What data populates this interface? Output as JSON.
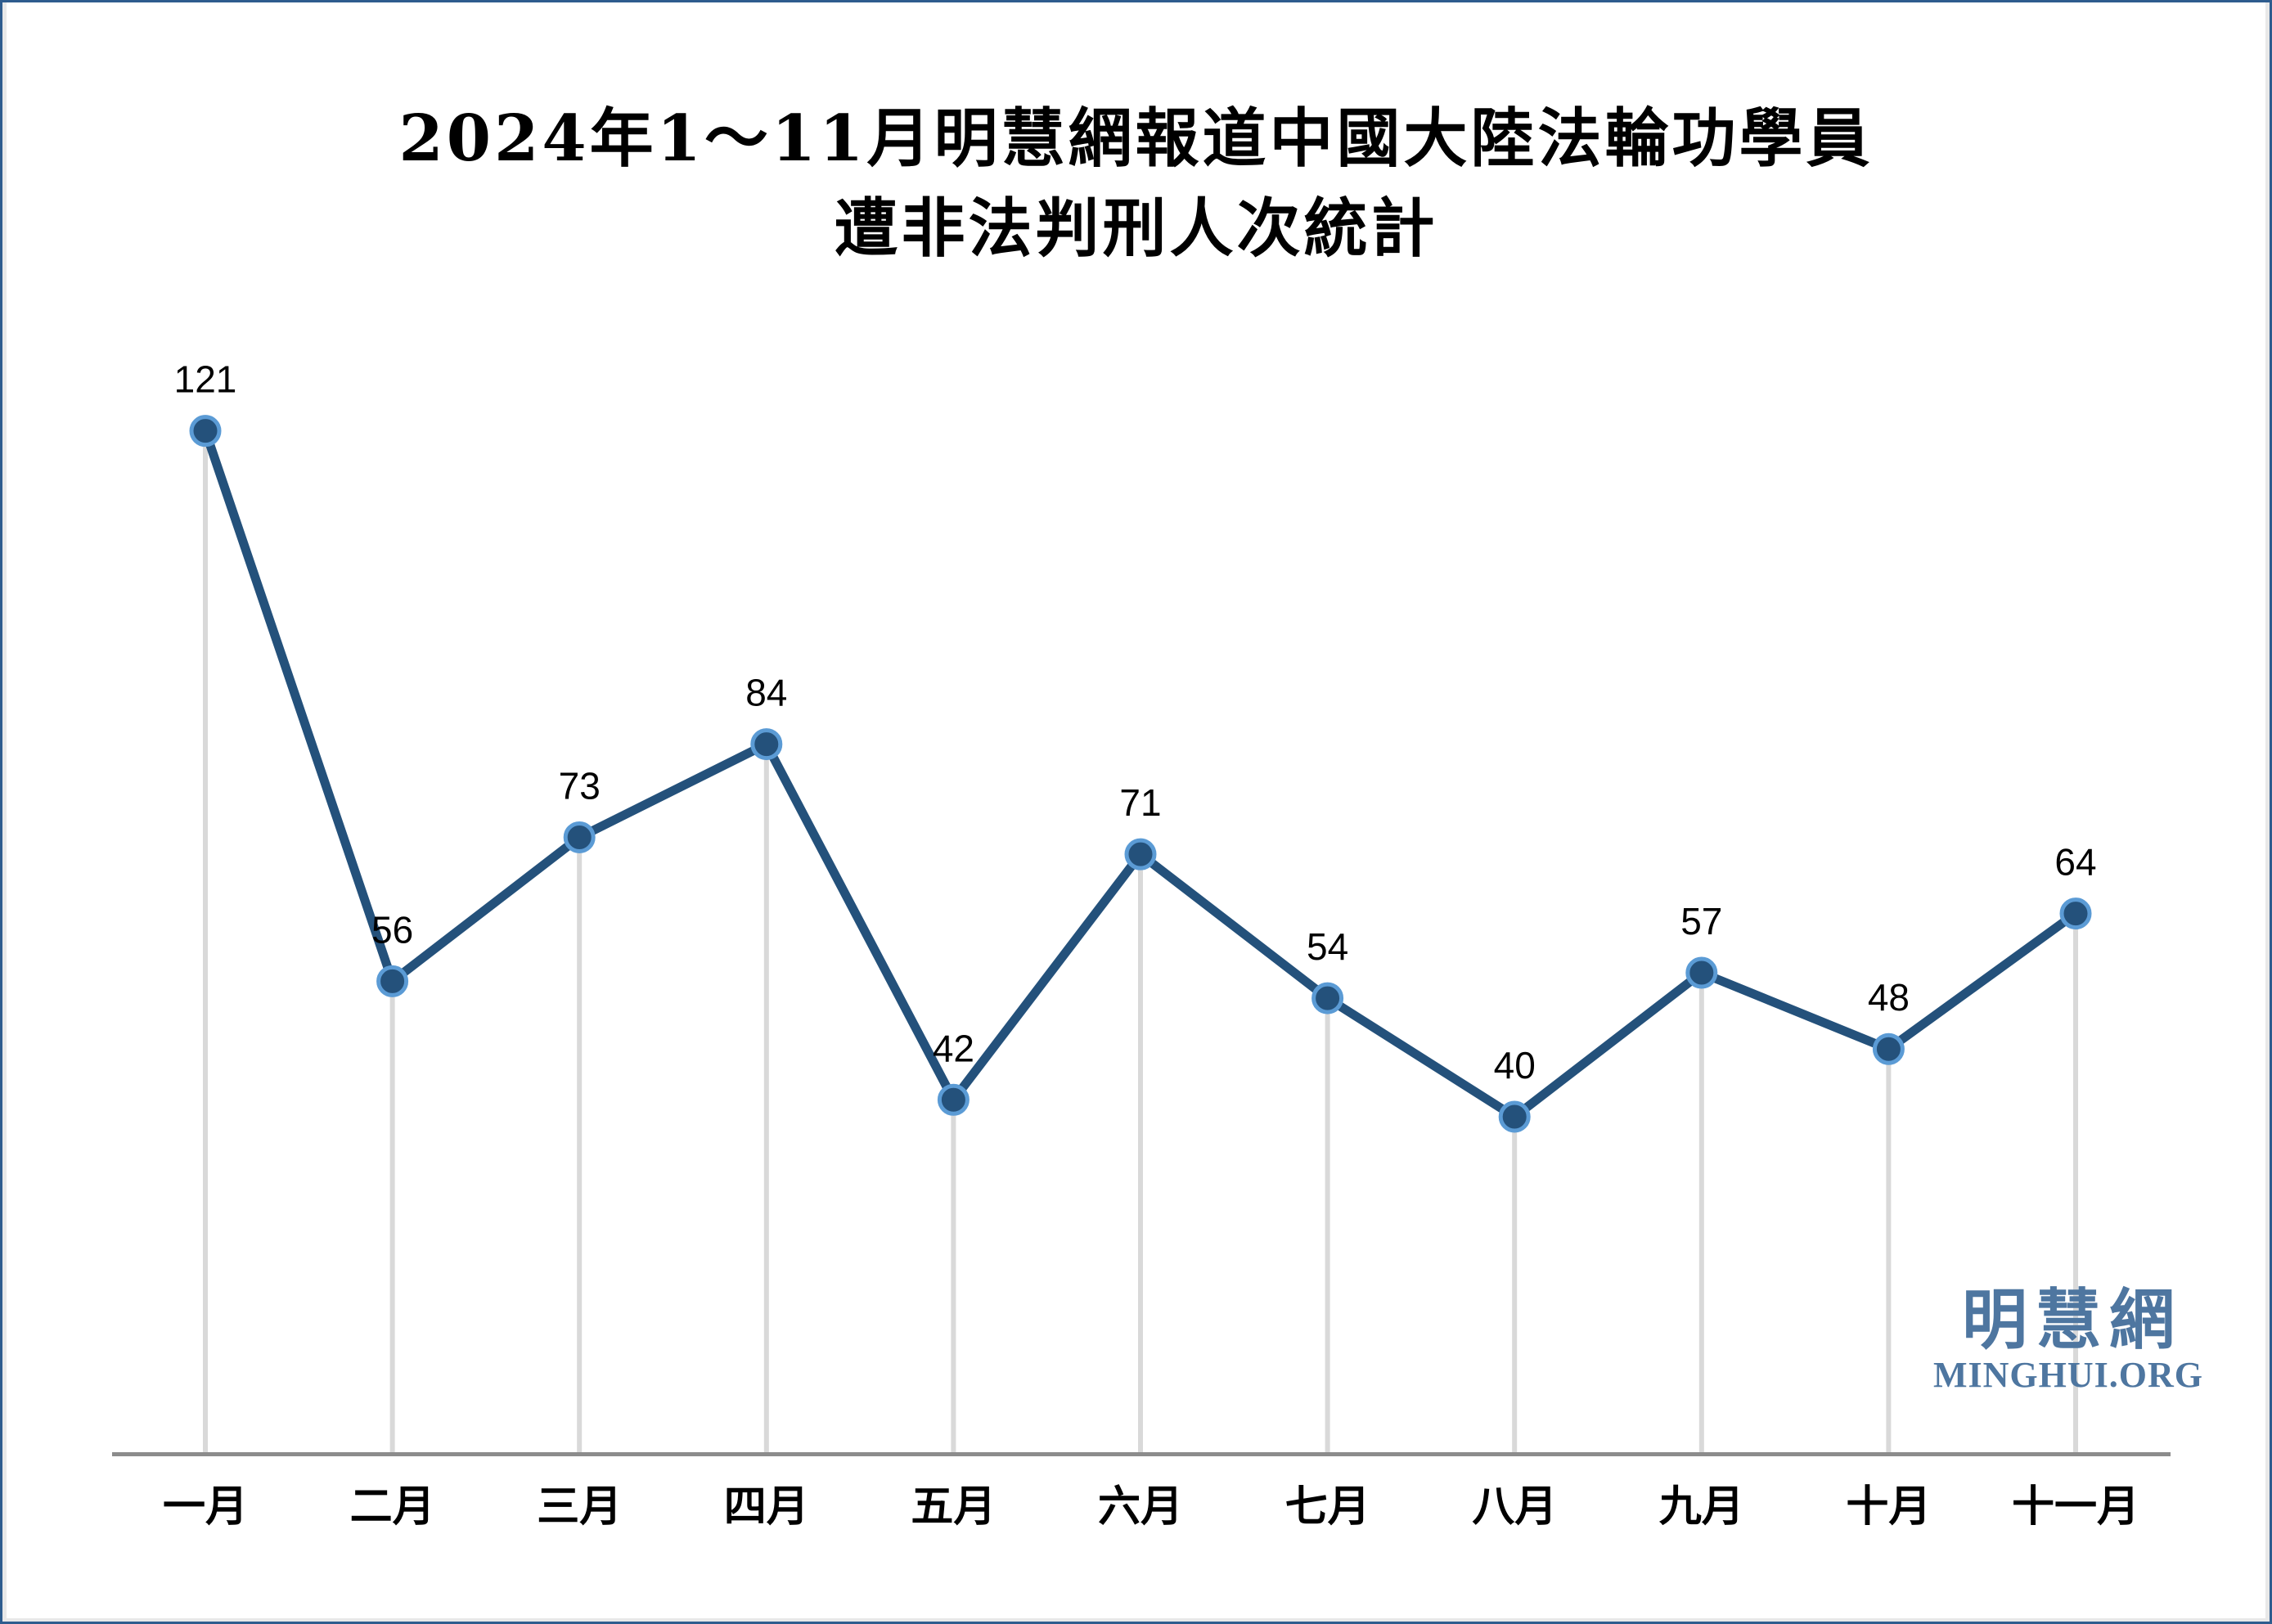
{
  "title": {
    "line1": "2024年1～11月明慧網報道中國大陸法輪功學員",
    "line2": "遭非法判刑人次統計"
  },
  "logo": {
    "cjk": "明慧網",
    "latin": "MINGHUI.ORG",
    "color": "#4E76A0"
  },
  "frame": {
    "border_color": "#2E5C8E",
    "inner_edge_color": "#E8E8E8",
    "background": "#FFFFFF"
  },
  "chart_data": {
    "type": "line",
    "title": "2024年1～11月明慧網報道中國大陸法輪功學員遭非法判刑人次統計",
    "categories": [
      "一月",
      "二月",
      "三月",
      "四月",
      "五月",
      "六月",
      "七月",
      "八月",
      "九月",
      "十月",
      "十一月"
    ],
    "values": [
      121,
      56,
      73,
      84,
      42,
      71,
      54,
      40,
      57,
      48,
      64
    ],
    "xlabel": "",
    "ylabel": "",
    "ylim": [
      0,
      130
    ],
    "grid": false,
    "legend": false,
    "data_labels": true,
    "drop_lines": true,
    "marker": "circle",
    "colors": {
      "line": "#24517B",
      "marker_fill": "#24517B",
      "marker_ring": "#5B9BD5",
      "drop_line": "#D9D9D9",
      "axis": "#8C8C8C",
      "label": "#000000"
    }
  }
}
